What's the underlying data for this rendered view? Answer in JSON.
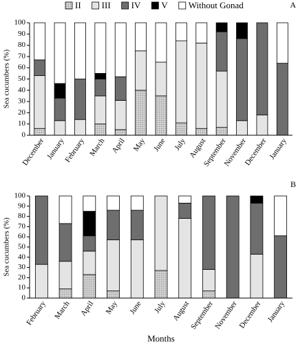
{
  "chart_data": [
    {
      "type": "stacked-bar",
      "panel_label": "A",
      "y_label": "Sea cucumbers (%)",
      "categories": [
        "December",
        "January",
        "February",
        "March",
        "April",
        "May",
        "June",
        "July",
        "August",
        "September",
        "November",
        "December",
        "January"
      ],
      "series": [
        {
          "name": "II",
          "color": "#c4c4c4",
          "pattern": "crosshatch",
          "values": [
            6,
            0,
            0,
            10,
            5,
            40,
            35,
            11,
            6,
            7,
            0,
            0,
            0
          ]
        },
        {
          "name": "III",
          "color": "#e4e4e4",
          "values": [
            47,
            13,
            14,
            25,
            26,
            35,
            30,
            73,
            76,
            50,
            13,
            18,
            0
          ]
        },
        {
          "name": "IV",
          "color": "#6e6e6e",
          "values": [
            14,
            20,
            36,
            15,
            21,
            0,
            0,
            0,
            0,
            35,
            73,
            82,
            64
          ]
        },
        {
          "name": "V",
          "color": "#000000",
          "values": [
            0,
            13,
            0,
            5,
            0,
            0,
            0,
            0,
            0,
            8,
            14,
            0,
            0
          ]
        },
        {
          "name": "Without Gonad",
          "color": "#ffffff",
          "values": [
            33,
            54,
            50,
            45,
            48,
            25,
            35,
            16,
            18,
            0,
            0,
            0,
            36
          ]
        }
      ],
      "ylim": [
        0,
        100
      ],
      "yticks": [
        0,
        10,
        20,
        30,
        40,
        50,
        60,
        70,
        80,
        90,
        100
      ]
    },
    {
      "type": "stacked-bar",
      "panel_label": "B",
      "y_label": "Sea cucumbers (%)",
      "x_label": "Months",
      "categories": [
        "February",
        "March",
        "April",
        "May",
        "June",
        "July",
        "August",
        "September",
        "November",
        "December",
        "January"
      ],
      "series": [
        {
          "color": "#c4c4c4",
          "pattern": "crosshatch",
          "values": [
            0,
            9,
            23,
            7,
            0,
            27,
            0,
            7,
            0,
            0,
            0
          ]
        },
        {
          "color": "#e4e4e4",
          "values": [
            33,
            27,
            23,
            50,
            57,
            73,
            78,
            21,
            0,
            43,
            0
          ]
        },
        {
          "color": "#6e6e6e",
          "values": [
            67,
            37,
            15,
            29,
            29,
            0,
            15,
            72,
            100,
            50,
            61
          ]
        },
        {
          "color": "#000000",
          "values": [
            0,
            0,
            24,
            0,
            0,
            0,
            0,
            0,
            0,
            7,
            0
          ]
        },
        {
          "color": "#ffffff",
          "values": [
            0,
            27,
            15,
            14,
            14,
            0,
            7,
            0,
            0,
            0,
            39
          ]
        }
      ],
      "ylim": [
        0,
        100
      ],
      "yticks": [
        0,
        10,
        20,
        30,
        40,
        50,
        60,
        70,
        80,
        90,
        100
      ]
    }
  ]
}
